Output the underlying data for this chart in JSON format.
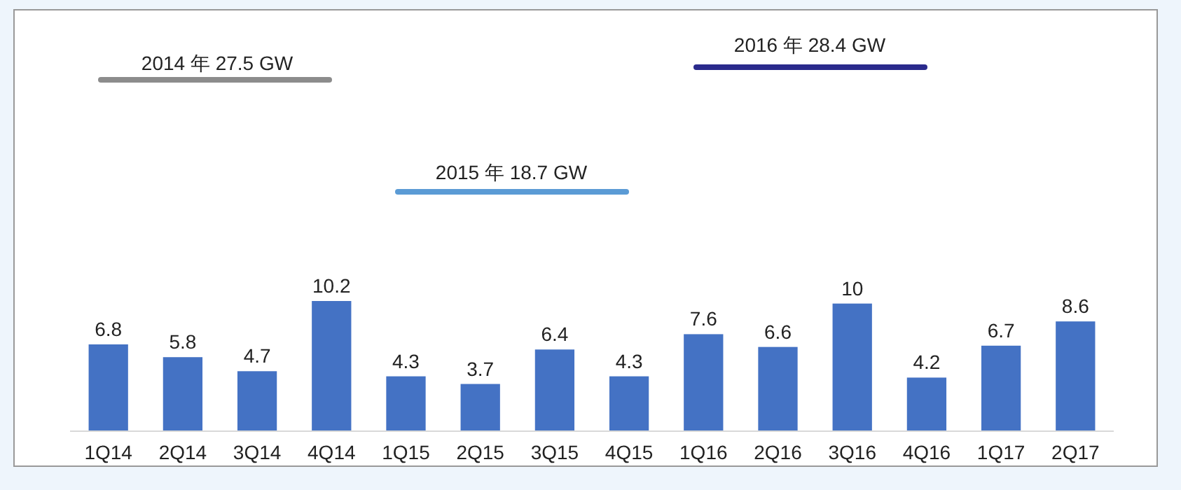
{
  "chart_data": {
    "type": "bar",
    "categories": [
      "1Q14",
      "2Q14",
      "3Q14",
      "4Q14",
      "1Q15",
      "2Q15",
      "3Q15",
      "4Q15",
      "1Q16",
      "2Q16",
      "3Q16",
      "4Q16",
      "1Q17",
      "2Q17"
    ],
    "values": [
      6.8,
      5.8,
      4.7,
      10.2,
      4.3,
      3.7,
      6.4,
      4.3,
      7.6,
      6.6,
      10,
      4.2,
      6.7,
      8.6
    ],
    "color": "#4472c4",
    "data_labels": true,
    "annotations": [
      "2014 年 27.5 GW",
      "2015 年 18.7 GW",
      "2016 年 28.4 GW"
    ]
  }
}
